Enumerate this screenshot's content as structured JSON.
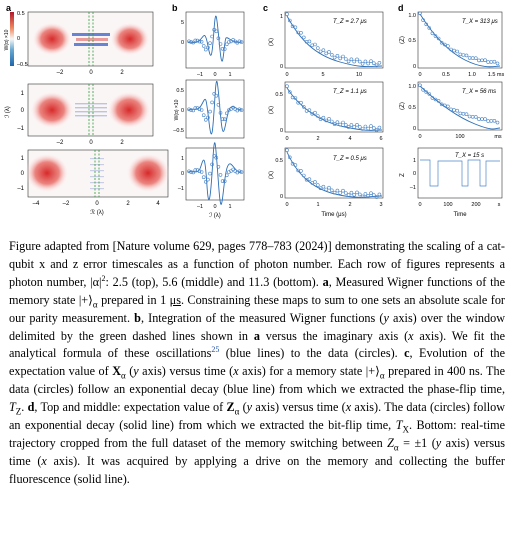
{
  "panel_letters": [
    "a",
    "b",
    "c",
    "d"
  ],
  "panel_a": {
    "colorbar_label": "W(α) ×10",
    "colorbar_ticks": [
      "0.5",
      "0",
      "–0.5"
    ],
    "y_label": "ℐ (λ)",
    "x_label": "ℛ (λ)",
    "row1_x_ticks": [
      "–2",
      "0",
      "2"
    ],
    "row2_y_ticks": [
      "1",
      "0",
      "–1"
    ],
    "row2_x_ticks": [
      "–2",
      "0",
      "2"
    ],
    "row3_y_ticks": [
      "1",
      "0",
      "–1"
    ],
    "row3_x_ticks": [
      "–4",
      "–2",
      "0",
      "2",
      "4"
    ]
  },
  "panel_b": {
    "y_label": "W(α) ×10",
    "x_label": "ℐ (λ)",
    "x_ticks": [
      "–1",
      "0",
      "1"
    ],
    "y_ticks_top": [
      "5",
      "0"
    ],
    "y_ticks_mid": [
      "0.5",
      "0",
      "–0.5"
    ],
    "y_ticks_bot": [
      "1",
      "0",
      "–1"
    ]
  },
  "panel_c": {
    "rows": [
      {
        "label": "T_Z = 2.7 μs",
        "y_axis": "⟨X⟩",
        "y_ticks": [
          "1",
          "0"
        ],
        "x_ticks": [
          "0",
          "5",
          "10"
        ]
      },
      {
        "label": "T_Z = 1.1 μs",
        "y_axis": "⟨X⟩",
        "y_ticks": [
          "0.5",
          "0"
        ],
        "x_ticks": [
          "0",
          "2",
          "4",
          "6"
        ]
      },
      {
        "label": "T_Z = 0.5 μs",
        "y_axis": "⟨X⟩",
        "y_ticks": [
          "0.5",
          "0"
        ],
        "x_ticks": [
          "0",
          "1",
          "2",
          "3"
        ]
      }
    ],
    "x_label": "Time (μs)"
  },
  "panel_d": {
    "rows": [
      {
        "label": "T_X = 313 μs",
        "y_axis": "⟨Z⟩",
        "y_ticks": [
          "1.0",
          "0.5",
          "0"
        ],
        "x_ticks": [
          "0",
          "0.5",
          "1.0",
          "1.5 ms"
        ]
      },
      {
        "label": "T_X = 56 ms",
        "y_axis": "⟨Z⟩",
        "y_ticks": [
          "1.0",
          "0.5",
          "0"
        ],
        "x_ticks": [
          "0",
          "100",
          "ms"
        ]
      },
      {
        "label": "T_X = 15 s",
        "y_axis": "Z",
        "y_ticks": [
          "1",
          "0",
          "–1"
        ],
        "x_ticks": [
          "0",
          "100",
          "200",
          "s"
        ]
      }
    ],
    "x_label": "Time"
  },
  "caption": {
    "intro_1": "Figure adapted from [Nature volume 629, pages 778–783 (2024)] demonstrating the scaling of a cat-qubit x and z error timescales as a function of photon number. Each row of figures represents a photon number, |α|",
    "intro_sup": "2",
    "intro_2": ": 2.5 (top), 5.6 (middle) and 11.3 (bottom).",
    "a_label": "a",
    "a_text_1": ", Measured Wigner functions of the memory state |+⟩",
    "a_sub": "α",
    "a_text_2": " prepared in 1 ",
    "a_us": "μs",
    "a_text_3": ". Constraining these maps to sum to one sets an absolute scale for our parity measurement.",
    "b_label": "b",
    "b_text_1": ", Integration of the measured Wigner functions (",
    "b_y": "y",
    "b_text_2": " axis) over the window delimited by the green dashed lines shown in ",
    "b_a": "a",
    "b_text_3": " versus the imaginary axis (",
    "b_x": "x",
    "b_text_4": " axis). We fit the analytical formula of these oscillations",
    "b_ref": "25",
    "b_text_5": " (blue lines) to the data (circles).",
    "c_label": "c",
    "c_text_1": ", Evolution of the expectation value of ",
    "c_X": "X",
    "c_Xsub": "α",
    "c_text_2": " (",
    "c_y": "y",
    "c_text_3": " axis) versus time (",
    "c_x": "x",
    "c_text_4": " axis) for a memory state |+⟩",
    "c_sub": "α",
    "c_text_5": " prepared in 400 ns. The data (circles) follow an exponential decay (blue line) from which we extracted the phase-flip time, ",
    "c_T": "T",
    "c_Tsub": "Z",
    "c_text_6": ".",
    "d_label": "d",
    "d_text_1": ", Top and middle: expectation value of ",
    "d_Z": "Z",
    "d_Zsub": "α",
    "d_text_2": " (",
    "d_y": "y",
    "d_text_3": " axis) versus time (",
    "d_x": "x",
    "d_text_4": " axis). The data (circles) follow an exponential decay (solid line) from which we extracted the bit-flip time, ",
    "d_T": "T",
    "d_Tsub": "X",
    "d_text_5": ". Bottom: real-time trajectory cropped from the full dataset of the memory switching between ",
    "d_Z2": "Z",
    "d_Z2sub": "α",
    "d_text_6": " = ±1 (",
    "d_y2": "y",
    "d_text_7": " axis) versus time (",
    "d_x2": "x",
    "d_text_8": " axis). It was acquired by applying a drive on the memory and collecting the buffer fluorescence (solid line)."
  },
  "chart_data": [
    {
      "type": "heatmap",
      "panel": "a",
      "title": "",
      "rows": 3,
      "colormap": "red-white-blue",
      "clim": [
        -0.5,
        0.5
      ]
    },
    {
      "type": "line",
      "panel": "b",
      "title": "",
      "series": [
        {
          "name": "",
          "style": "circles + blue line"
        }
      ],
      "rows": 3
    },
    {
      "type": "scatter",
      "panel": "c",
      "rows": [
        {
          "T_Z_us": 2.7,
          "xlim": [
            0,
            13
          ],
          "ylim": [
            0,
            1
          ]
        },
        {
          "T_Z_us": 1.1,
          "xlim": [
            0,
            6
          ],
          "ylim": [
            0,
            0.6
          ]
        },
        {
          "T_Z_us": 0.5,
          "xlim": [
            0,
            3
          ],
          "ylim": [
            0,
            0.6
          ]
        }
      ]
    },
    {
      "type": "scatter",
      "panel": "d",
      "rows": [
        {
          "T_X": "313 μs",
          "xlim_ms": [
            0,
            1.6
          ],
          "ylim": [
            0,
            1.0
          ]
        },
        {
          "T_X": "56 ms",
          "xlim_ms": [
            0,
            200
          ],
          "ylim": [
            0,
            1.0
          ]
        },
        {
          "T_X": "15 s",
          "xlim_s": [
            0,
            300
          ],
          "ylim": [
            -1,
            1
          ],
          "style": "telegraph trajectory"
        }
      ]
    }
  ]
}
